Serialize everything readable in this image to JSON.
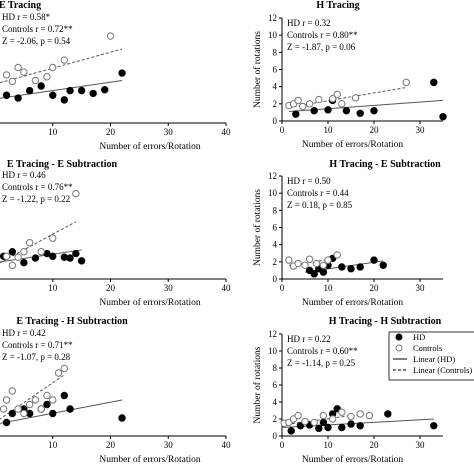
{
  "chart_data": [
    {
      "id": "p1",
      "type": "scatter",
      "title": "E Tracing",
      "xlabel": "Number of errors/Rotation",
      "ylabel": "",
      "xlim": [
        0,
        40
      ],
      "ylim": [
        0,
        12
      ],
      "xticks": [
        "10",
        "20",
        "30",
        "40"
      ],
      "yticks": [],
      "stats": [
        {
          "label": "HD",
          "r": "r = 0.58*"
        },
        {
          "label": "Controls",
          "r": "r = 0.72**"
        },
        {
          "label": "Z",
          "r": "= -2.06, p = 0.54"
        }
      ],
      "series": [
        {
          "name": "HD",
          "x": [
            1,
            2,
            4,
            6,
            8,
            10,
            12,
            13,
            15,
            17,
            19,
            22
          ],
          "y": [
            3.5,
            3.0,
            2.7,
            3.5,
            4.0,
            3.0,
            2.5,
            3.5,
            3.5,
            3.2,
            3.6,
            5.4
          ]
        },
        {
          "name": "Controls",
          "x": [
            1,
            2,
            3,
            4,
            5,
            7,
            9,
            10,
            12,
            20
          ],
          "y": [
            4.8,
            5.2,
            4.5,
            6.0,
            5.5,
            4.6,
            5.0,
            6.0,
            6.8,
            9.4
          ]
        }
      ],
      "fits": [
        {
          "series": "HD",
          "x": [
            0,
            22
          ],
          "y": [
            2.6,
            4.6
          ]
        },
        {
          "series": "Controls",
          "x": [
            0,
            22
          ],
          "y": [
            4.2,
            8.0
          ]
        }
      ]
    },
    {
      "id": "p2",
      "type": "scatter",
      "title": "H Tracing",
      "xlabel": "Number of errors/Rotation",
      "ylabel": "Number of rotations",
      "xlim": [
        0,
        35
      ],
      "ylim": [
        0,
        12
      ],
      "xticks": [
        "0",
        "10",
        "20",
        "30"
      ],
      "yticks": [
        "0",
        "2",
        "4",
        "6",
        "8",
        "10",
        "12"
      ],
      "stats": [
        {
          "label": "HD",
          "r": "r = 0.32"
        },
        {
          "label": "Controls",
          "r": "r = 0.80**"
        },
        {
          "label": "Z",
          "r": "= -1.87, p = 0.06"
        }
      ],
      "series": [
        {
          "name": "HD",
          "x": [
            3,
            7,
            10,
            11,
            14,
            17,
            20,
            33,
            35
          ],
          "y": [
            0.8,
            1.2,
            1.3,
            2.4,
            1.2,
            0.9,
            1.2,
            4.5,
            0.5
          ]
        },
        {
          "name": "Controls",
          "x": [
            1.5,
            2.5,
            3.5,
            4.5,
            6,
            8,
            11,
            12,
            13,
            16,
            27
          ],
          "y": [
            1.8,
            2.0,
            2.4,
            1.7,
            2.0,
            2.5,
            2.6,
            3.1,
            2.0,
            2.7,
            4.5
          ]
        }
      ],
      "fits": [
        {
          "series": "HD",
          "x": [
            1.5,
            35
          ],
          "y": [
            1.1,
            2.4
          ]
        },
        {
          "series": "Controls",
          "x": [
            1.5,
            27
          ],
          "y": [
            1.6,
            3.9
          ]
        }
      ]
    },
    {
      "id": "p3",
      "type": "scatter",
      "title": "E Tracing - E Subtraction",
      "xlabel": "Number of errors/Rotation",
      "ylabel": "",
      "xlim": [
        0,
        40
      ],
      "ylim": [
        0,
        12
      ],
      "xticks": [
        "10",
        "20",
        "30",
        "40"
      ],
      "yticks": [],
      "stats": [
        {
          "label": "HD",
          "r": "r = 0.46"
        },
        {
          "label": "Controls",
          "r": "r = 0.76**"
        },
        {
          "label": "Z",
          "r": "= -1.22, p = 0.22"
        }
      ],
      "series": [
        {
          "name": "HD",
          "x": [
            0.5,
            1.5,
            3,
            5,
            7,
            9,
            10,
            12,
            13,
            14,
            15
          ],
          "y": [
            2.0,
            2.5,
            3.0,
            1.8,
            2.3,
            2.8,
            2.5,
            2.4,
            2.3,
            2.8,
            2.0
          ]
        },
        {
          "name": "Controls",
          "x": [
            0.5,
            1,
            2,
            3,
            4,
            5,
            6,
            8,
            10,
            14
          ],
          "y": [
            3.0,
            2.0,
            2.5,
            1.5,
            2.4,
            3.0,
            4.0,
            3.0,
            4.5,
            9.4
          ]
        }
      ],
      "fits": [
        {
          "series": "HD",
          "x": [
            0,
            15
          ],
          "y": [
            1.8,
            3.2
          ]
        },
        {
          "series": "Controls",
          "x": [
            0,
            14
          ],
          "y": [
            1.5,
            6.3
          ]
        }
      ]
    },
    {
      "id": "p4",
      "type": "scatter",
      "title": "H Tracing - E Subtraction",
      "xlabel": "Number of errors/Rotation",
      "ylabel": "Number of rotations",
      "xlim": [
        0,
        35
      ],
      "ylim": [
        0,
        12
      ],
      "xticks": [
        "0",
        "10",
        "20",
        "30"
      ],
      "yticks": [
        "0",
        "2",
        "4",
        "6",
        "8",
        "10",
        "12"
      ],
      "stats": [
        {
          "label": "HD",
          "r": "r = 0.50"
        },
        {
          "label": "Controls",
          "r": "r = 0.44"
        },
        {
          "label": "Z",
          "r": "= 0.18, p = 0.85"
        }
      ],
      "series": [
        {
          "name": "HD",
          "x": [
            6,
            7,
            8,
            9,
            10,
            11,
            13,
            15,
            17,
            20,
            22
          ],
          "y": [
            1.0,
            0.6,
            1.2,
            0.8,
            1.6,
            2.4,
            1.4,
            1.2,
            1.4,
            2.2,
            1.6
          ]
        },
        {
          "name": "Controls",
          "x": [
            1.5,
            2.5,
            3.5,
            5,
            6,
            7.5,
            9,
            10,
            12
          ],
          "y": [
            2.2,
            1.5,
            1.8,
            1.6,
            2.3,
            1.8,
            1.6,
            2.2,
            2.8
          ]
        }
      ],
      "fits": [
        {
          "series": "HD",
          "x": [
            5,
            22
          ],
          "y": [
            0.8,
            2.1
          ]
        },
        {
          "series": "Controls",
          "x": [
            1.5,
            12
          ],
          "y": [
            1.6,
            2.4
          ]
        }
      ]
    },
    {
      "id": "p5",
      "type": "scatter",
      "title": "E Tracing - H Subtraction",
      "xlabel": "Number of errors/Rotation",
      "ylabel": "",
      "xlim": [
        0,
        40
      ],
      "ylim": [
        0,
        12
      ],
      "xticks": [
        "10",
        "20",
        "30",
        "40"
      ],
      "yticks": [],
      "stats": [
        {
          "label": "HD",
          "r": "r = 0.42"
        },
        {
          "label": "Controls",
          "r": "r = 0.71**"
        },
        {
          "label": "Z",
          "r": "= -1.07, p = 0.28"
        }
      ],
      "series": [
        {
          "name": "HD",
          "x": [
            0.5,
            1,
            2,
            3,
            5,
            6,
            8,
            9,
            10,
            12,
            13,
            22
          ],
          "y": [
            1.0,
            2.0,
            1.5,
            2.5,
            3.0,
            2.5,
            3.0,
            3.5,
            2.5,
            4.5,
            3.0,
            2.0
          ]
        },
        {
          "name": "Controls",
          "x": [
            0.5,
            1,
            1.5,
            2,
            3,
            4,
            5,
            6,
            7,
            8,
            9,
            10,
            11,
            12
          ],
          "y": [
            1.5,
            2.0,
            3.0,
            4.0,
            5.0,
            3.0,
            2.5,
            3.5,
            4.0,
            3.0,
            4.5,
            4.0,
            7.0,
            7.5
          ]
        }
      ],
      "fits": [
        {
          "series": "HD",
          "x": [
            0,
            22
          ],
          "y": [
            1.3,
            4.0
          ]
        },
        {
          "series": "Controls",
          "x": [
            0,
            12
          ],
          "y": [
            1.5,
            6.8
          ]
        }
      ]
    },
    {
      "id": "p6",
      "type": "scatter",
      "title": "H Tracing - H Subtraction",
      "xlabel": "Number of errors/Rotation",
      "ylabel": "Number of rotations",
      "xlim": [
        0,
        35
      ],
      "ylim": [
        0,
        12
      ],
      "xticks": [
        "0",
        "10",
        "20",
        "30"
      ],
      "yticks": [
        "0",
        "2",
        "4",
        "6",
        "8",
        "10",
        "12"
      ],
      "stats": [
        {
          "label": "HD",
          "r": "r = 0.22"
        },
        {
          "label": "Controls",
          "r": "r = 0.60**"
        },
        {
          "label": "Z",
          "r": "= -1.14, p = 0.25"
        }
      ],
      "series": [
        {
          "name": "HD",
          "x": [
            2,
            4,
            6,
            8,
            9,
            10,
            11,
            12,
            13,
            15,
            17,
            23,
            33
          ],
          "y": [
            0.6,
            1.2,
            1.3,
            0.9,
            1.6,
            1.0,
            2.6,
            3.2,
            1.0,
            1.4,
            1.2,
            2.6,
            1.2
          ]
        },
        {
          "name": "Controls",
          "x": [
            0.5,
            1.5,
            2.5,
            3.5,
            5,
            7,
            9,
            11,
            13,
            15,
            17,
            19
          ],
          "y": [
            1.5,
            1.6,
            2.0,
            2.4,
            1.7,
            1.6,
            2.4,
            2.0,
            2.8,
            2.3,
            2.6,
            2.4
          ]
        }
      ],
      "fits": [
        {
          "series": "HD",
          "x": [
            0,
            33
          ],
          "y": [
            1.0,
            2.0
          ]
        },
        {
          "series": "Controls",
          "x": [
            0,
            19
          ],
          "y": [
            1.3,
            2.7
          ]
        }
      ]
    }
  ],
  "legend": {
    "items": [
      {
        "label": "HD",
        "marker": "filled-circle"
      },
      {
        "label": "Controls",
        "marker": "open-circle"
      },
      {
        "label": "Linear (HD)",
        "line": "solid"
      },
      {
        "label": "Linear (Controls)",
        "line": "dashed"
      }
    ]
  },
  "colors": {
    "hd_marker": "#000000",
    "control_marker_fill": "#ffffff",
    "control_marker_stroke": "#777777",
    "fit_hd": "#555555",
    "fit_controls": "#555555"
  }
}
